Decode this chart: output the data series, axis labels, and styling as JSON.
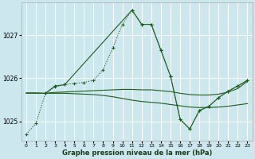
{
  "title": "Graphe pression niveau de la mer (hPa)",
  "background_color": "#cce8ee",
  "plot_bg_color": "#cce8ee",
  "grid_color": "#ffffff",
  "line_color": "#1a5c1a",
  "ylim": [
    1024.55,
    1027.75
  ],
  "xlim": [
    -0.5,
    23.5
  ],
  "yticks": [
    1025,
    1026,
    1027
  ],
  "xticks": [
    0,
    1,
    2,
    3,
    4,
    5,
    6,
    7,
    8,
    9,
    10,
    11,
    12,
    13,
    14,
    15,
    16,
    17,
    18,
    19,
    20,
    21,
    22,
    23
  ],
  "series": {
    "line1_dotted": {
      "x": [
        0,
        1,
        2,
        3,
        4,
        5,
        6,
        7,
        8,
        9,
        10,
        11,
        12,
        13,
        14,
        15,
        16,
        17,
        18,
        19,
        20,
        21,
        22,
        23
      ],
      "y": [
        1024.7,
        1024.95,
        1025.65,
        1025.8,
        1025.85,
        1025.88,
        1025.9,
        1025.95,
        1026.2,
        1026.7,
        1027.25,
        1027.58,
        1027.25,
        1027.25,
        1026.65,
        1026.05,
        1025.05,
        1024.82,
        1025.25,
        1025.35,
        1025.55,
        1025.7,
        1025.82,
        1025.95
      ],
      "linestyle": ":",
      "marker": "+"
    },
    "line2_solid_flat": {
      "x": [
        0,
        1,
        2,
        3,
        4,
        5,
        6,
        7,
        8,
        9,
        10,
        11,
        12,
        13,
        14,
        15,
        16,
        17,
        18,
        19,
        20,
        21,
        22,
        23
      ],
      "y": [
        1025.65,
        1025.65,
        1025.65,
        1025.67,
        1025.68,
        1025.69,
        1025.7,
        1025.71,
        1025.72,
        1025.73,
        1025.74,
        1025.74,
        1025.73,
        1025.73,
        1025.71,
        1025.69,
        1025.65,
        1025.62,
        1025.61,
        1025.61,
        1025.63,
        1025.68,
        1025.76,
        1025.93
      ],
      "linestyle": "-",
      "marker": null
    },
    "line3_solid_decline": {
      "x": [
        0,
        1,
        2,
        3,
        4,
        5,
        6,
        7,
        8,
        9,
        10,
        11,
        12,
        13,
        14,
        15,
        16,
        17,
        18,
        19,
        20,
        21,
        22,
        23
      ],
      "y": [
        1025.66,
        1025.66,
        1025.65,
        1025.65,
        1025.65,
        1025.64,
        1025.63,
        1025.62,
        1025.6,
        1025.57,
        1025.53,
        1025.49,
        1025.46,
        1025.44,
        1025.42,
        1025.39,
        1025.36,
        1025.33,
        1025.32,
        1025.32,
        1025.33,
        1025.35,
        1025.38,
        1025.41
      ],
      "linestyle": "-",
      "marker": null
    },
    "line4_solid_marker": {
      "x": [
        2,
        3,
        4,
        11,
        12,
        13,
        14,
        15,
        16,
        17,
        18,
        19,
        20,
        21,
        22,
        23
      ],
      "y": [
        1025.65,
        1025.82,
        1025.85,
        1027.58,
        1027.25,
        1027.25,
        1026.65,
        1026.05,
        1025.05,
        1024.82,
        1025.25,
        1025.35,
        1025.55,
        1025.7,
        1025.82,
        1025.95
      ],
      "linestyle": "-",
      "marker": "+"
    }
  }
}
